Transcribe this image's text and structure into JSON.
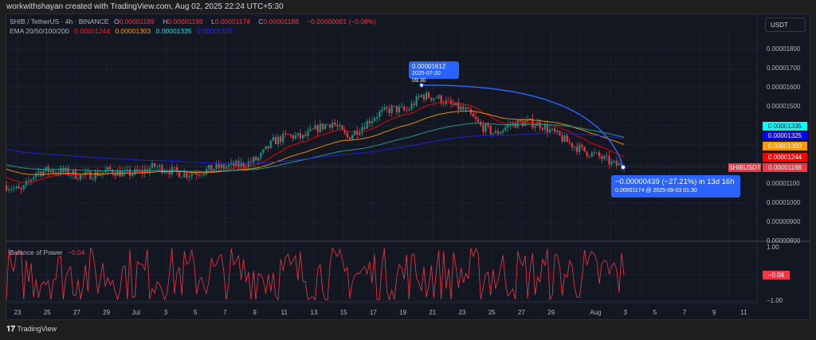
{
  "credit": "workwithshayan created with TradingView.com, Aug 02, 2025 22:24 UTC+5:30",
  "legend": {
    "symbol": "SHIB / TetherUS · 4h · BINANCE",
    "o_label": "O",
    "o": "0.00001189",
    "h_label": "H",
    "h": "0.00001198",
    "l_label": "L",
    "l": "0.00001174",
    "c_label": "C",
    "c": "0.00001188",
    "change": "−0.00000001 (−0.08%)",
    "ema_title": "EMA 20/50/100/200",
    "ema20": "0.00001244",
    "ema50": "0.00001303",
    "ema100": "0.00001335",
    "ema200": "0.00001325"
  },
  "currency": "USDT",
  "price_ticks": [
    "0.00001800",
    "0.00001700",
    "0.00001600",
    "0.00001500",
    "0.00001100",
    "0.00001000",
    "0.00000900",
    "0.00000800"
  ],
  "price_labels": {
    "ema100": "0.00001335",
    "ema200": "0.00001325",
    "ema50": "0.00001303",
    "ema20": "0.00001244",
    "symbol": "SHIBUSDT",
    "last": "0.00001188"
  },
  "colors": {
    "up": "#089981",
    "down": "#f23645",
    "ema20": "#ff0000",
    "ema50": "#ff9800",
    "ema100": "#00ffff",
    "ema200": "#0000ff",
    "measure": "#2962ff"
  },
  "measure": {
    "start_price": "0.00001612",
    "start_time": "2025-07-20 09:30",
    "result": "−0.00000439 (−27.21%) in 13d 16h",
    "end_detail": "0.00001174 @ 2025-08-03  01:30"
  },
  "bop": {
    "title": "Balance of Power",
    "value": "−0.04",
    "ticks": [
      "1.00",
      "−1.00"
    ],
    "label": "−0.04"
  },
  "time_labels": [
    "23",
    "25",
    "27",
    "29",
    "Jul",
    "3",
    "5",
    "7",
    "9",
    "11",
    "13",
    "15",
    "17",
    "19",
    "21",
    "23",
    "25",
    "27",
    "29",
    "Aug",
    "3",
    "5",
    "7",
    "9",
    "11"
  ],
  "footer": "TradingView",
  "chart_data": {
    "type": "candlestick",
    "title": "SHIB / TetherUS · 4h · BINANCE",
    "x": [
      "Jun 22",
      "Jun 23",
      "Jun 24",
      "Jun 25",
      "Jun 26",
      "Jun 27",
      "Jun 28",
      "Jun 29",
      "Jun 30",
      "Jul 1",
      "Jul 2",
      "Jul 3",
      "Jul 4",
      "Jul 5",
      "Jul 6",
      "Jul 7",
      "Jul 8",
      "Jul 9",
      "Jul 10",
      "Jul 11",
      "Jul 12",
      "Jul 13",
      "Jul 14",
      "Jul 15",
      "Jul 16",
      "Jul 17",
      "Jul 18",
      "Jul 19",
      "Jul 20",
      "Jul 21",
      "Jul 22",
      "Jul 23",
      "Jul 24",
      "Jul 25",
      "Jul 26",
      "Jul 27",
      "Jul 28",
      "Jul 29",
      "Jul 30",
      "Jul 31",
      "Aug 1",
      "Aug 2",
      "Aug 3"
    ],
    "close_e6": [
      10.9,
      10.6,
      11.6,
      11.7,
      11.6,
      11.4,
      11.5,
      11.7,
      11.5,
      11.6,
      11.9,
      11.7,
      11.5,
      11.6,
      11.8,
      11.9,
      12.0,
      12.3,
      13.2,
      13.5,
      13.4,
      13.9,
      14.2,
      13.4,
      14.0,
      14.6,
      14.9,
      14.8,
      15.6,
      15.5,
      15.1,
      14.8,
      14.0,
      13.6,
      14.1,
      14.2,
      14.1,
      13.6,
      13.1,
      12.7,
      12.4,
      12.0,
      11.88
    ],
    "ylim_e6": [
      7.6,
      19.0
    ],
    "series_ema": [
      "EMA 20",
      "EMA 50",
      "EMA 100",
      "EMA 200"
    ]
  }
}
